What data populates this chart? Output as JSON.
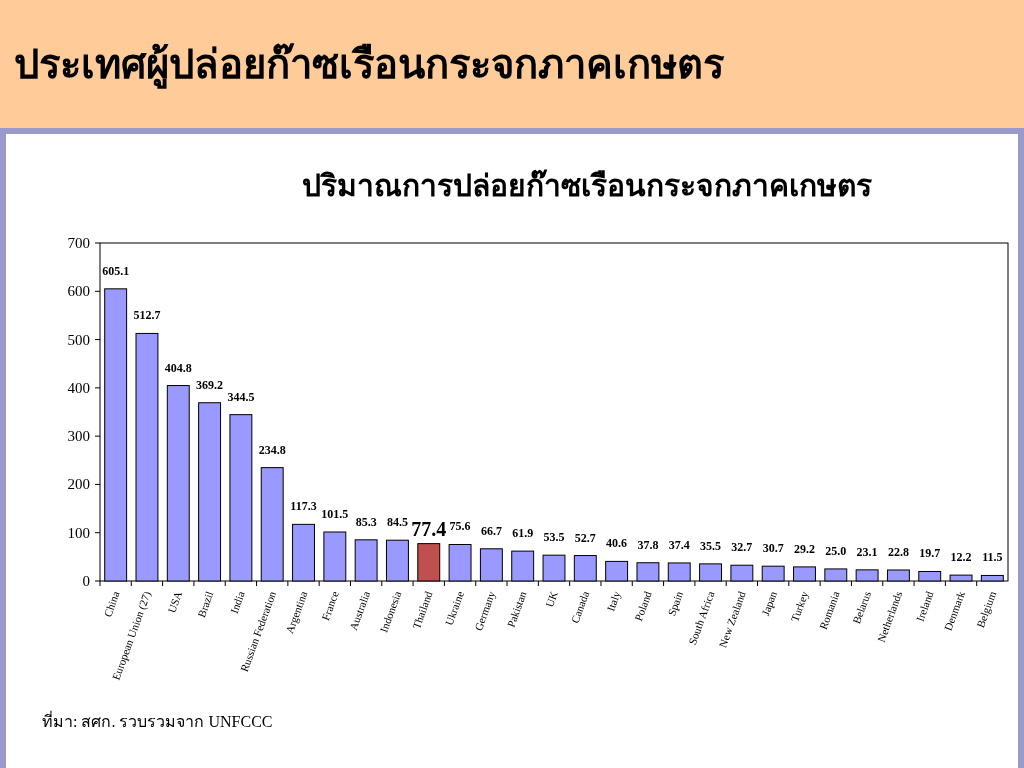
{
  "chart_data": {
    "type": "bar",
    "title": "ประเทศผู้ปล่อยก๊าซเรือนกระจกภาคเกษตร",
    "subtitle": "ปริมาณการปล่อยก๊าซเรือนกระจกภาคเกษตร",
    "categories": [
      "China",
      "European Union (27)",
      "USA",
      "Brazil",
      "India",
      "Russian Federation",
      "Argentina",
      "France",
      "Australia",
      "Indonesia",
      "Thailand",
      "Ukraine",
      "Germany",
      "Pakistan",
      "UK",
      "Canada",
      "Italy",
      "Poland",
      "Spain",
      "South Africa",
      "New Zealand",
      "Japan",
      "Turkey",
      "Romania",
      "Belarus",
      "Netherlands",
      "Ireland",
      "Denmark",
      "Belgium"
    ],
    "values": [
      605.1,
      512.7,
      404.8,
      369.2,
      344.5,
      234.8,
      117.3,
      101.5,
      85.3,
      84.5,
      77.4,
      75.6,
      66.7,
      61.9,
      53.5,
      52.7,
      40.6,
      37.8,
      37.4,
      35.5,
      32.7,
      30.7,
      29.2,
      25.0,
      23.1,
      22.8,
      19.7,
      12.2,
      11.5
    ],
    "value_labels": [
      "605.1",
      "512.7",
      "404.8",
      "369.2",
      "344.5",
      "234.8",
      "117.3",
      "101.5",
      "85.3",
      "84.5",
      "77.4",
      "75.6",
      "66.7",
      "61.9",
      "53.5",
      "52.7",
      "40.6",
      "37.8",
      "37.4",
      "35.5",
      "32.7",
      "30.7",
      "29.2",
      "25.0",
      "23.1",
      "22.8",
      "19.7",
      "12.2",
      "11.5"
    ],
    "colors": [
      "#9999ff",
      "#9999ff",
      "#9999ff",
      "#9999ff",
      "#9999ff",
      "#9999ff",
      "#9999ff",
      "#9999ff",
      "#9999ff",
      "#9999ff",
      "#c0504d",
      "#9999ff",
      "#9999ff",
      "#9999ff",
      "#9999ff",
      "#9999ff",
      "#9999ff",
      "#9999ff",
      "#9999ff",
      "#9999ff",
      "#9999ff",
      "#9999ff",
      "#9999ff",
      "#9999ff",
      "#9999ff",
      "#9999ff",
      "#9999ff",
      "#9999ff",
      "#9999ff"
    ],
    "ylim": [
      0,
      700
    ],
    "yticks": [
      0,
      100,
      200,
      300,
      400,
      500,
      600,
      700
    ],
    "annotations": [
      "ที่มา: สศก. รวบรวมจาก  UNFCCC"
    ]
  }
}
